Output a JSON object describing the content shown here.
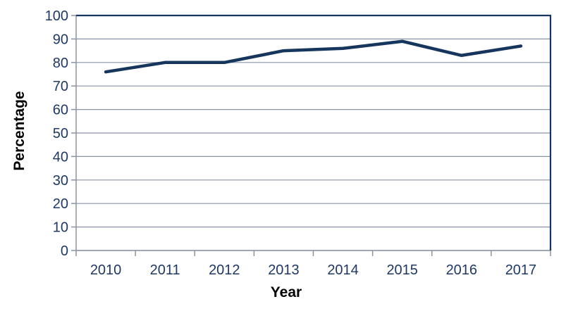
{
  "chart_data": {
    "type": "line",
    "title": "",
    "categories": [
      "2010",
      "2011",
      "2012",
      "2013",
      "2014",
      "2015",
      "2016",
      "2017"
    ],
    "values": [
      76,
      80,
      80,
      85,
      86,
      89,
      83,
      87
    ],
    "xlabel": "Year",
    "ylabel": "Percentage",
    "ylim": [
      0,
      100
    ],
    "ytick_step": 10,
    "grid": true,
    "legend_position": "none",
    "colors": {
      "line": "#17365D",
      "border": "#17365D",
      "text": "#1F3864",
      "grid": "#8C92A6",
      "axis": "#8C92A6",
      "background": "#FFFFFF"
    }
  }
}
